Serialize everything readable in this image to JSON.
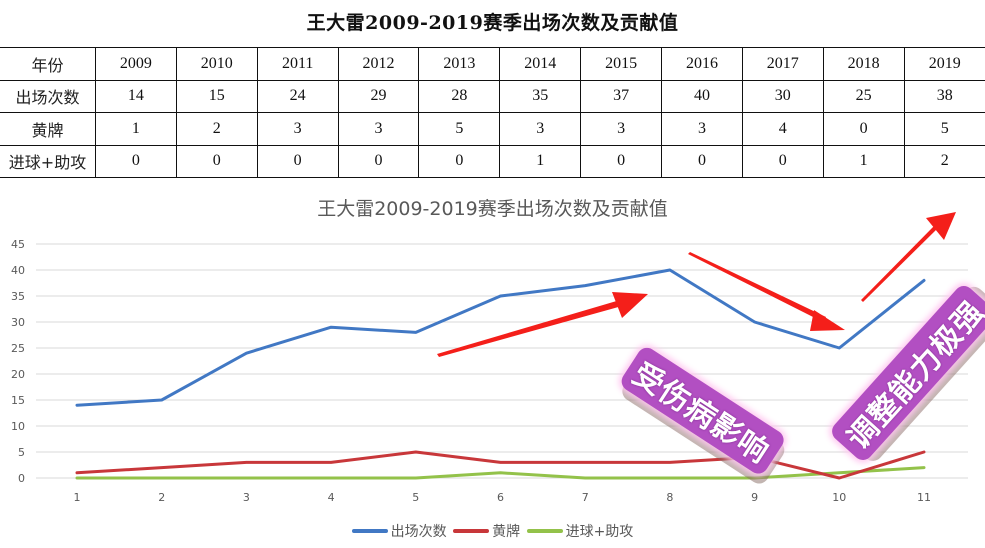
{
  "page": {
    "title": "王大雷2009-2019赛季出场次数及贡献值"
  },
  "table": {
    "header_label": "年份",
    "years": [
      "2009",
      "2010",
      "2011",
      "2012",
      "2013",
      "2014",
      "2015",
      "2016",
      "2017",
      "2018",
      "2019"
    ],
    "rows": [
      {
        "label": "出场次数",
        "values": [
          "14",
          "15",
          "24",
          "29",
          "28",
          "35",
          "37",
          "40",
          "30",
          "25",
          "38"
        ]
      },
      {
        "label": "黄牌",
        "values": [
          "1",
          "2",
          "3",
          "3",
          "5",
          "3",
          "3",
          "3",
          "4",
          "0",
          "5"
        ]
      },
      {
        "label": "进球+助攻",
        "values": [
          "0",
          "0",
          "0",
          "0",
          "0",
          "1",
          "0",
          "0",
          "0",
          "1",
          "2"
        ]
      }
    ]
  },
  "chart": {
    "title": "王大雷2009-2019赛季出场次数及贡献值",
    "y_ticks": [
      "45",
      "40",
      "35",
      "30",
      "25",
      "20",
      "15",
      "10",
      "5",
      "0"
    ],
    "x_ticks": [
      "1",
      "2",
      "3",
      "4",
      "5",
      "6",
      "7",
      "8",
      "9",
      "10",
      "11"
    ],
    "legend": [
      {
        "label": "出场次数",
        "color": "#4178c4"
      },
      {
        "label": "黄牌",
        "color": "#c8373a"
      },
      {
        "label": "进球+助攻",
        "color": "#93c24a"
      }
    ],
    "annotations": {
      "injury": "受伤病影响",
      "adjust": "调整能力极强"
    },
    "arrow_color": "#f41f1a",
    "sticker_color": "#b24fc2"
  },
  "chart_data": {
    "type": "line",
    "title": "王大雷2009-2019赛季出场次数及贡献值",
    "x": [
      1,
      2,
      3,
      4,
      5,
      6,
      7,
      8,
      9,
      10,
      11
    ],
    "categories_years": [
      "2009",
      "2010",
      "2011",
      "2012",
      "2013",
      "2014",
      "2015",
      "2016",
      "2017",
      "2018",
      "2019"
    ],
    "series": [
      {
        "name": "出场次数",
        "color": "#4178c4",
        "values": [
          14,
          15,
          24,
          29,
          28,
          35,
          37,
          40,
          30,
          25,
          38
        ]
      },
      {
        "name": "黄牌",
        "color": "#c8373a",
        "values": [
          1,
          2,
          3,
          3,
          5,
          3,
          3,
          3,
          4,
          0,
          5
        ]
      },
      {
        "name": "进球+助攻",
        "color": "#93c24a",
        "values": [
          0,
          0,
          0,
          0,
          0,
          1,
          0,
          0,
          0,
          1,
          2
        ]
      }
    ],
    "xlabel": "",
    "ylabel": "",
    "ylim": [
      0,
      45
    ],
    "y_tick_step": 5,
    "grid": true,
    "legend_position": "bottom",
    "annotations": [
      "受伤病影响",
      "调整能力极强"
    ]
  }
}
